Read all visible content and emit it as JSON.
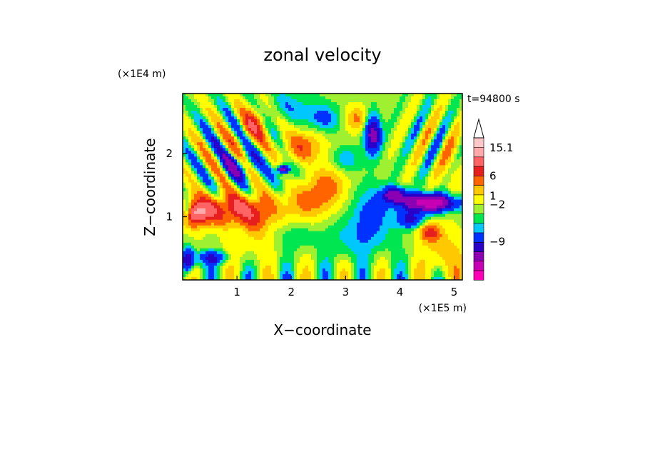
{
  "chart_data": {
    "type": "heatmap",
    "title": "zonal velocity",
    "xlabel": "X−coordinate",
    "ylabel": "Z−coordinate",
    "x_unit": "(×1E5 m)",
    "y_unit": "(×1E4 m)",
    "time_label": "t=94800 s",
    "xlim": [
      0,
      5.15
    ],
    "ylim": [
      0,
      2.95
    ],
    "x_ticks": [
      {
        "value": 1,
        "label": "1"
      },
      {
        "value": 2,
        "label": "2"
      },
      {
        "value": 3,
        "label": "3"
      },
      {
        "value": 4,
        "label": "4"
      },
      {
        "value": 5,
        "label": "5"
      }
    ],
    "y_ticks": [
      {
        "value": 1,
        "label": "1"
      },
      {
        "value": 2,
        "label": "2"
      }
    ],
    "colorbar": {
      "levels": [
        {
          "color": "#ff00b4"
        },
        {
          "color": "#c800b4"
        },
        {
          "color": "#8c00b4"
        },
        {
          "color": "#2800c8"
        },
        {
          "color": "#0032ff"
        },
        {
          "color": "#00c8ff"
        },
        {
          "color": "#00e650"
        },
        {
          "color": "#a0f032"
        },
        {
          "color": "#ffff00"
        },
        {
          "color": "#ffc800"
        },
        {
          "color": "#ff6400"
        },
        {
          "color": "#e61e1e"
        },
        {
          "color": "#ff6464"
        },
        {
          "color": "#ffaaaa"
        },
        {
          "color": "#ffc8c8"
        }
      ],
      "labels": [
        {
          "text": "15.1",
          "at": 0.93
        },
        {
          "text": "6",
          "at": 0.73
        },
        {
          "text": "1",
          "at": 0.59
        },
        {
          "text": "−2",
          "at": 0.53
        },
        {
          "text": "−9",
          "at": 0.27
        }
      ],
      "extend": "max"
    },
    "features": [
      {
        "x": 0.9,
        "z": 1.12,
        "sx": 0.75,
        "sz": 0.25,
        "v": 7
      },
      {
        "x": 0.25,
        "z": 1.05,
        "sx": 0.25,
        "sz": 0.2,
        "v": 8
      },
      {
        "x": 1.35,
        "z": 0.9,
        "sx": 0.3,
        "sz": 0.3,
        "v": 3
      },
      {
        "x": 1.0,
        "z": 0.45,
        "sx": 0.6,
        "sz": 0.25,
        "v": 1
      },
      {
        "x": 2.3,
        "z": 1.25,
        "sx": 0.4,
        "sz": 0.3,
        "v": 4
      },
      {
        "x": 2.2,
        "z": 2.1,
        "sx": 0.35,
        "sz": 0.25,
        "v": 5
      },
      {
        "x": 2.7,
        "z": 1.5,
        "sx": 0.3,
        "sz": 0.3,
        "v": 4
      },
      {
        "x": 3.2,
        "z": 0.65,
        "sx": 0.6,
        "sz": 0.35,
        "v": -2
      },
      {
        "x": 2.1,
        "z": 0.7,
        "sx": 0.3,
        "sz": 0.2,
        "v": -1.5
      },
      {
        "x": 3.5,
        "z": 1.1,
        "sx": 0.35,
        "sz": 0.4,
        "v": -3
      },
      {
        "x": 3.9,
        "z": 1.35,
        "sx": 0.2,
        "sz": 0.12,
        "v": -8
      },
      {
        "x": 4.55,
        "z": 1.22,
        "sx": 0.5,
        "sz": 0.14,
        "v": -12
      },
      {
        "x": 4.2,
        "z": 0.95,
        "sx": 0.25,
        "sz": 0.14,
        "v": -5
      },
      {
        "x": 4.8,
        "z": 0.4,
        "sx": 0.35,
        "sz": 0.4,
        "v": 3
      },
      {
        "x": 4.55,
        "z": 0.75,
        "sx": 0.2,
        "sz": 0.15,
        "v": 6
      },
      {
        "x": 3.5,
        "z": 2.3,
        "sx": 0.15,
        "sz": 0.3,
        "v": -8
      },
      {
        "x": 3.2,
        "z": 2.55,
        "sx": 0.2,
        "sz": 0.2,
        "v": 4
      },
      {
        "x": 2.0,
        "z": 2.75,
        "sx": 0.5,
        "sz": 0.25,
        "v": -2
      },
      {
        "x": 2.6,
        "z": 2.55,
        "sx": 0.3,
        "sz": 0.2,
        "v": -3
      },
      {
        "x": 1.3,
        "z": 2.45,
        "sx": 0.25,
        "sz": 0.3,
        "v": 5
      },
      {
        "x": 1.05,
        "z": 1.8,
        "sx": 0.3,
        "sz": 0.22,
        "v": -4
      },
      {
        "x": 0.1,
        "z": 0.3,
        "sx": 0.12,
        "sz": 0.2,
        "v": -7
      },
      {
        "x": 0.55,
        "z": 0.35,
        "sx": 0.3,
        "sz": 0.12,
        "v": -5
      },
      {
        "x": 0.08,
        "z": 1.1,
        "sx": 0.07,
        "sz": 0.15,
        "v": -6
      },
      {
        "x": 1.9,
        "z": 1.7,
        "sx": 0.3,
        "sz": 0.25,
        "v": -1.5
      },
      {
        "x": 1.85,
        "z": 1.75,
        "sx": 0.1,
        "sz": 0.06,
        "v": -9
      },
      {
        "x": 4.95,
        "z": 1.8,
        "sx": 0.2,
        "sz": 0.6,
        "v": 2
      },
      {
        "x": 3.0,
        "z": 1.9,
        "sx": 0.25,
        "sz": 0.2,
        "v": -2.5
      }
    ]
  }
}
